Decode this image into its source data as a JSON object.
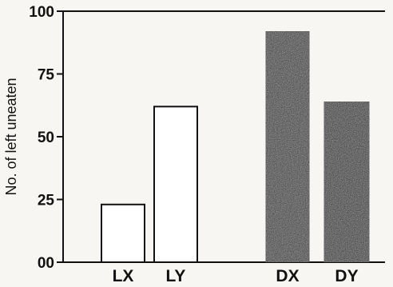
{
  "chart_data": {
    "type": "bar",
    "title": "",
    "xlabel": "",
    "ylabel": "No. of left uneaten",
    "ylim": [
      0,
      100
    ],
    "yticks": [
      0,
      25,
      50,
      75,
      100
    ],
    "ytick_labels": [
      "00",
      "25",
      "50",
      "75",
      "100"
    ],
    "categories": [
      "LX",
      "LY",
      "DX",
      "DY"
    ],
    "values": [
      23,
      62,
      92,
      64
    ],
    "bar_fills": [
      "#ffffff",
      "#ffffff",
      "#2a2a2a",
      "#1c1c1c"
    ],
    "grid": false,
    "legend": "none"
  }
}
